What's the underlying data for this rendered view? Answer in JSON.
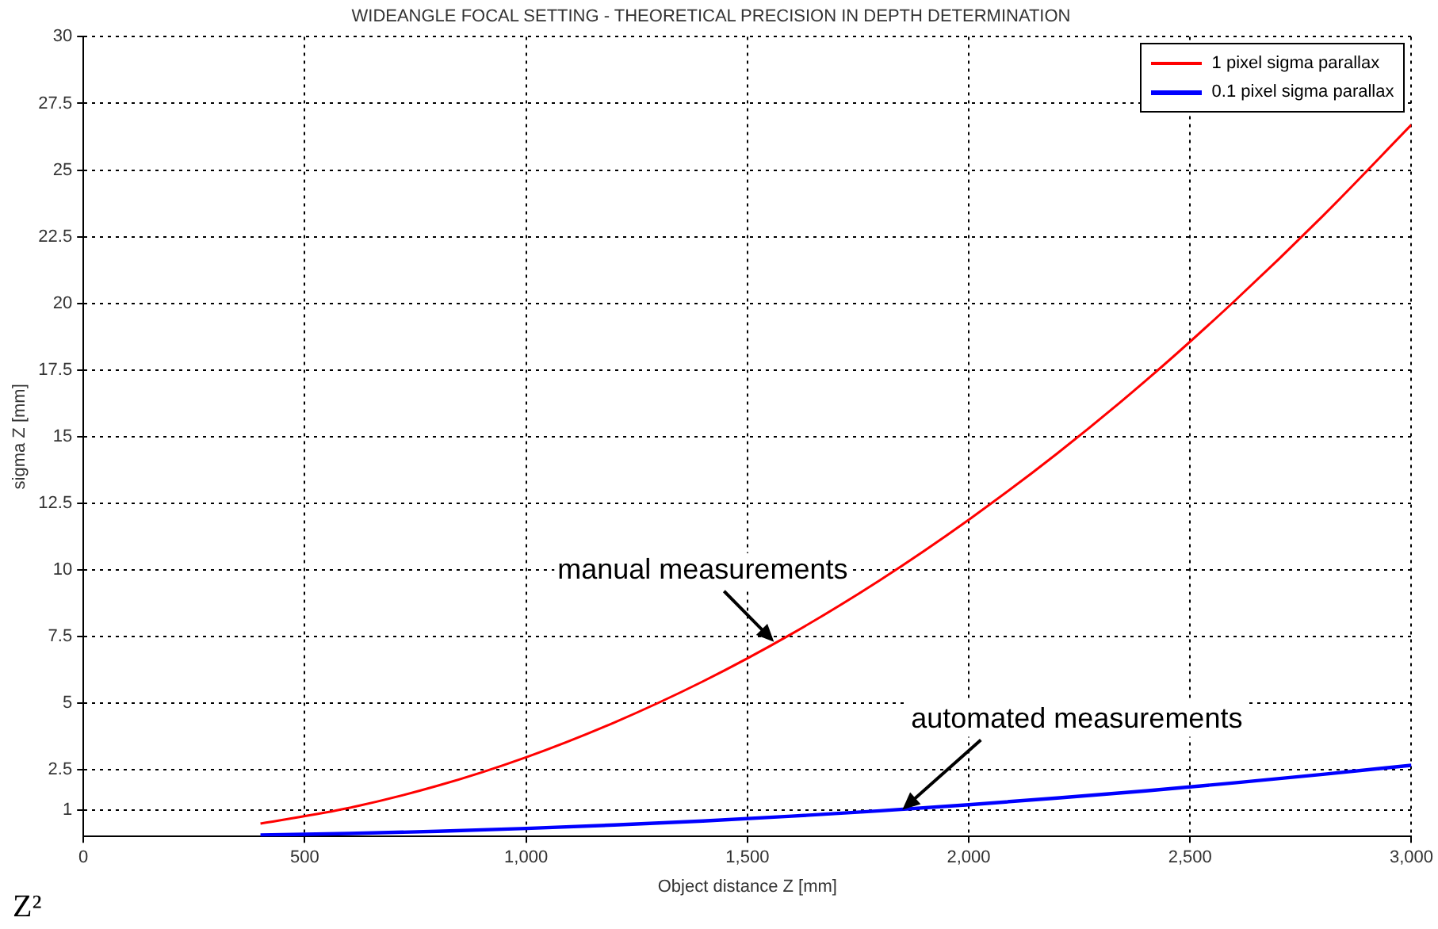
{
  "chart_data": {
    "type": "line",
    "title": "WIDEANGLE FOCAL SETTING - THEORETICAL PRECISION IN DEPTH DETERMINATION",
    "xlabel": "Object distance Z [mm]",
    "ylabel": "sigma Z [mm]",
    "x": [
      400,
      600,
      800,
      1000,
      1200,
      1400,
      1600,
      1800,
      2000,
      2200,
      2400,
      2600,
      2800,
      3000
    ],
    "series": [
      {
        "name": "1 pixel sigma parallax",
        "color": "#ff0000",
        "values": [
          0.48,
          1.07,
          1.9,
          2.97,
          4.28,
          5.82,
          7.6,
          9.62,
          11.88,
          14.37,
          17.1,
          20.08,
          23.28,
          26.7
        ]
      },
      {
        "name": "0.1 pixel sigma parallax",
        "color": "#0000ff",
        "values": [
          0.05,
          0.11,
          0.19,
          0.3,
          0.43,
          0.58,
          0.76,
          0.96,
          1.19,
          1.44,
          1.71,
          2.01,
          2.33,
          2.67
        ]
      }
    ],
    "xlim": [
      0,
      3000
    ],
    "xticks": [
      0,
      500,
      {
        "value": 1000,
        "label": "1,000"
      },
      {
        "value": 1500,
        "label": "1,500"
      },
      {
        "value": 2000,
        "label": "2,000"
      },
      {
        "value": 2500,
        "label": "2,500"
      },
      {
        "value": 3000,
        "label": "3,000"
      }
    ],
    "ylim": [
      0,
      30
    ],
    "yticks": [
      1,
      2.5,
      5,
      7.5,
      10,
      12.5,
      15,
      17.5,
      20,
      22.5,
      25,
      27.5,
      30
    ],
    "grid": true,
    "legend": "top right",
    "marker": "none",
    "line_style": "solid",
    "annotations": [
      {
        "text": "manual measurements",
        "x": 1560,
        "y": 7.3
      },
      {
        "text": "automated measurements",
        "x": 1850,
        "y": 1.0
      },
      "Z²"
    ]
  }
}
